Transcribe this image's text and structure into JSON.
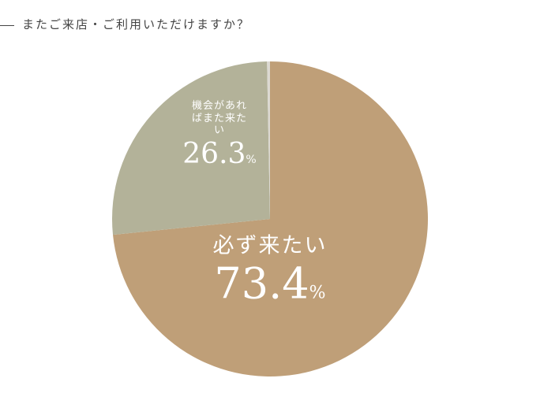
{
  "chart_data": {
    "type": "pie",
    "title": "またご来店・ご利用いただけますか？",
    "categories": [
      "必ず来たい",
      "機会があればまた来たい",
      null
    ],
    "values": [
      73.4,
      26.3,
      0.3
    ],
    "unit": "%",
    "colors": [
      "#bf9f78",
      "#b3b299",
      "#dcd9d2"
    ]
  }
}
